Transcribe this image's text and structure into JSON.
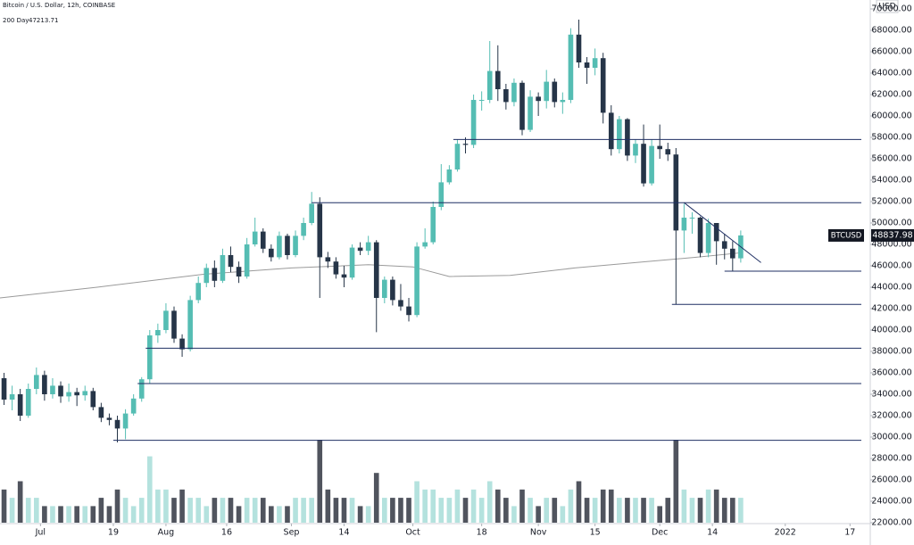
{
  "chart_data": {
    "type": "candlestick",
    "title": "Bitcoin / U.S. Dollar, 12h, COINBASE",
    "currency": "USD",
    "symbol": "BTCUSD",
    "up_color": "#55bdb3",
    "down_color": "#263548",
    "volume_up_color": "#b4e2de",
    "volume_down_color": "#50545e",
    "level_color": "#1f2f63",
    "ma": {
      "name": "200 Day",
      "color": "#9a9a9a",
      "x": [
        "2021-06-21",
        "2021-07-15",
        "2021-08-10",
        "2021-09-01",
        "2021-09-20",
        "2021-10-01",
        "2021-10-10",
        "2021-10-25",
        "2021-11-10",
        "2021-11-25",
        "2021-12-10",
        "2021-12-21"
      ],
      "values": [
        43000,
        44000,
        45200,
        45800,
        46100,
        45900,
        45000,
        45100,
        45800,
        46300,
        46800,
        47213.71
      ]
    },
    "candles": {
      "x": [
        "2021-06-21",
        "2021-06-23",
        "2021-06-25",
        "2021-06-27",
        "2021-06-29",
        "2021-07-01",
        "2021-07-03",
        "2021-07-05",
        "2021-07-07",
        "2021-07-09",
        "2021-07-11",
        "2021-07-13",
        "2021-07-15",
        "2021-07-17",
        "2021-07-19",
        "2021-07-21",
        "2021-07-23",
        "2021-07-25",
        "2021-07-27",
        "2021-07-29",
        "2021-07-31",
        "2021-08-02",
        "2021-08-04",
        "2021-08-06",
        "2021-08-08",
        "2021-08-10",
        "2021-08-12",
        "2021-08-14",
        "2021-08-16",
        "2021-08-18",
        "2021-08-20",
        "2021-08-22",
        "2021-08-24",
        "2021-08-26",
        "2021-08-28",
        "2021-08-30",
        "2021-09-01",
        "2021-09-03",
        "2021-09-05",
        "2021-09-07",
        "2021-09-09",
        "2021-09-11",
        "2021-09-13",
        "2021-09-15",
        "2021-09-17",
        "2021-09-19",
        "2021-09-21",
        "2021-09-23",
        "2021-09-25",
        "2021-09-27",
        "2021-09-29",
        "2021-10-01",
        "2021-10-03",
        "2021-10-05",
        "2021-10-07",
        "2021-10-09",
        "2021-10-11",
        "2021-10-13",
        "2021-10-15",
        "2021-10-17",
        "2021-10-19",
        "2021-10-21",
        "2021-10-23",
        "2021-10-25",
        "2021-10-27",
        "2021-10-29",
        "2021-10-31",
        "2021-11-02",
        "2021-11-04",
        "2021-11-06",
        "2021-11-08",
        "2021-11-10",
        "2021-11-12",
        "2021-11-14",
        "2021-11-16",
        "2021-11-18",
        "2021-11-20",
        "2021-11-22",
        "2021-11-24",
        "2021-11-26",
        "2021-11-28",
        "2021-11-30",
        "2021-12-02",
        "2021-12-04",
        "2021-12-06",
        "2021-12-08",
        "2021-12-10",
        "2021-12-12",
        "2021-12-14",
        "2021-12-16",
        "2021-12-18",
        "2021-12-20"
      ],
      "open": [
        35500,
        33500,
        34000,
        32000,
        34500,
        35800,
        34000,
        34800,
        33800,
        34200,
        33900,
        34300,
        32800,
        31800,
        31600,
        30800,
        32200,
        33600,
        35400,
        39500,
        40000,
        41800,
        39200,
        38200,
        42800,
        44400,
        45800,
        44600,
        47000,
        45900,
        45000,
        48000,
        49200,
        47600,
        46800,
        48800,
        47000,
        48800,
        50000,
        51800,
        46800,
        46400,
        45200,
        44900,
        47700,
        47400,
        48200,
        43000,
        44700,
        42800,
        42200,
        41400,
        47800,
        48200,
        51500,
        53800,
        55000,
        57400,
        57300,
        61500,
        61500,
        64200,
        62500,
        61300,
        63100,
        58700,
        61800,
        61400,
        63200,
        61300,
        61500,
        67600,
        65000,
        64500,
        65400,
        60300,
        56900,
        59700,
        56300,
        57400,
        53700,
        57200,
        56900,
        56400,
        49300,
        50500,
        50500,
        47200,
        50000,
        48300,
        47600,
        46700
      ],
      "high": [
        36000,
        34800,
        34500,
        35000,
        36500,
        36200,
        35500,
        35200,
        35000,
        34600,
        34800,
        34600,
        33200,
        32200,
        32000,
        32600,
        34000,
        35600,
        40000,
        40600,
        42500,
        42200,
        39600,
        43200,
        45000,
        46200,
        46500,
        47600,
        47800,
        46400,
        48600,
        50500,
        49500,
        48000,
        49200,
        49000,
        49300,
        50500,
        52900,
        52400,
        47300,
        46800,
        46000,
        48000,
        48200,
        48800,
        48400,
        45000,
        45000,
        44300,
        43000,
        48200,
        49500,
        52000,
        55500,
        55400,
        57800,
        58000,
        62000,
        62300,
        67000,
        66600,
        63000,
        63500,
        63300,
        62400,
        62200,
        64300,
        63500,
        62200,
        68200,
        69000,
        65500,
        66300,
        65900,
        61000,
        60000,
        59800,
        57800,
        59200,
        57800,
        59200,
        57500,
        57000,
        51800,
        51000,
        50600,
        50400,
        50000,
        49000,
        48300,
        49300
      ],
      "low": [
        33000,
        32500,
        31500,
        31800,
        34000,
        33400,
        33600,
        33200,
        33300,
        32900,
        33400,
        32500,
        31400,
        31100,
        29500,
        29800,
        32000,
        33300,
        35000,
        38800,
        39700,
        38800,
        37500,
        38000,
        42500,
        44000,
        44000,
        44400,
        45400,
        44400,
        44800,
        47800,
        47200,
        46400,
        46600,
        46600,
        46800,
        48400,
        49800,
        43000,
        45800,
        44800,
        44000,
        44700,
        47000,
        47000,
        39800,
        42500,
        42300,
        41800,
        40800,
        41200,
        47600,
        48000,
        51200,
        53600,
        54800,
        56500,
        57000,
        60500,
        61200,
        61400,
        60600,
        60900,
        58200,
        58500,
        60000,
        60700,
        60800,
        60200,
        61200,
        64500,
        63000,
        63800,
        59300,
        56300,
        56500,
        55800,
        55600,
        53400,
        53500,
        56000,
        55800,
        42400,
        47200,
        49000,
        46800,
        46800,
        46100,
        46600,
        45500,
        46300
      ],
      "close": [
        33500,
        34000,
        32000,
        34500,
        35800,
        34000,
        34800,
        33800,
        34200,
        33900,
        34300,
        32800,
        31800,
        31600,
        30800,
        32200,
        33600,
        35400,
        39500,
        40000,
        41800,
        39200,
        38200,
        42800,
        44400,
        45800,
        44600,
        47000,
        45900,
        45000,
        48000,
        49200,
        47600,
        46800,
        48800,
        47000,
        48800,
        50000,
        51800,
        46800,
        46400,
        45200,
        44900,
        47700,
        47400,
        48200,
        43000,
        44700,
        42800,
        42200,
        41400,
        47800,
        48200,
        51500,
        53800,
        55000,
        57400,
        57300,
        61500,
        61500,
        64200,
        62500,
        61300,
        63100,
        58700,
        61800,
        61400,
        63200,
        61300,
        61500,
        67600,
        65000,
        64500,
        65400,
        60300,
        56900,
        59700,
        56300,
        57400,
        53700,
        57200,
        56900,
        56400,
        49300,
        50500,
        50500,
        47200,
        50000,
        48300,
        47600,
        46700,
        48837.98
      ],
      "volume": [
        4,
        3,
        5,
        3,
        3,
        2,
        2,
        2,
        2,
        2,
        2,
        2,
        3,
        2,
        4,
        3,
        2,
        3,
        8,
        4,
        4,
        3,
        4,
        3,
        3,
        2,
        3,
        3,
        3,
        2,
        3,
        3,
        3,
        2,
        2,
        2,
        3,
        3,
        3,
        10,
        4,
        3,
        3,
        3,
        2,
        2,
        6,
        3,
        3,
        3,
        3,
        5,
        4,
        4,
        3,
        3,
        4,
        3,
        4,
        3,
        5,
        4,
        3,
        2,
        4,
        3,
        2,
        3,
        3,
        2,
        4,
        5,
        3,
        3,
        4,
        4,
        3,
        3,
        3,
        3,
        3,
        2,
        3,
        10,
        4,
        3,
        3,
        4,
        4,
        3,
        3,
        3
      ]
    },
    "levels": [
      {
        "start": "2021-07-19",
        "value": 29700
      },
      {
        "start": "2021-07-25",
        "value": 35000
      },
      {
        "start": "2021-07-27",
        "value": 38300
      },
      {
        "start": "2021-09-06",
        "value": 51900
      },
      {
        "start": "2021-10-11",
        "value": 57800
      },
      {
        "start": "2021-12-04",
        "value": 42400
      },
      {
        "start": "2021-12-17",
        "value": 45500
      }
    ],
    "trendline": {
      "x": [
        "2021-12-07",
        "2021-12-26"
      ],
      "values": [
        51900,
        46300
      ]
    },
    "xlim": [
      "2021-06-21",
      "2022-01-22"
    ],
    "xticks": [
      {
        "value": "2021-07-01",
        "label": "Jul"
      },
      {
        "value": "2021-07-19",
        "label": "19"
      },
      {
        "value": "2021-08-01",
        "label": "Aug"
      },
      {
        "value": "2021-08-16",
        "label": "16"
      },
      {
        "value": "2021-09-01",
        "label": "Sep"
      },
      {
        "value": "2021-09-14",
        "label": "14"
      },
      {
        "value": "2021-10-01",
        "label": "Oct"
      },
      {
        "value": "2021-10-18",
        "label": "18"
      },
      {
        "value": "2021-11-01",
        "label": "Nov"
      },
      {
        "value": "2021-11-15",
        "label": "15"
      },
      {
        "value": "2021-12-01",
        "label": "Dec"
      },
      {
        "value": "2021-12-14",
        "label": "14"
      },
      {
        "value": "2022-01-01",
        "label": "2022"
      },
      {
        "value": "2022-01-17",
        "label": "17"
      }
    ],
    "ylim": [
      22000,
      70000
    ],
    "yticks": [
      {
        "value": 22000,
        "label": "22000.00"
      },
      {
        "value": 24000,
        "label": "24000.00"
      },
      {
        "value": 26000,
        "label": "26000.00"
      },
      {
        "value": 28000,
        "label": "28000.00"
      },
      {
        "value": 30000,
        "label": "30000.00"
      },
      {
        "value": 32000,
        "label": "32000.00"
      },
      {
        "value": 34000,
        "label": "34000.00"
      },
      {
        "value": 36000,
        "label": "36000.00"
      },
      {
        "value": 38000,
        "label": "38000.00"
      },
      {
        "value": 40000,
        "label": "40000.00"
      },
      {
        "value": 42000,
        "label": "42000.00"
      },
      {
        "value": 44000,
        "label": "44000.00"
      },
      {
        "value": 46000,
        "label": "46000.00"
      },
      {
        "value": 48000,
        "label": "48000.00"
      },
      {
        "value": 50000,
        "label": "50000.00"
      },
      {
        "value": 52000,
        "label": "52000.00"
      },
      {
        "value": 54000,
        "label": "54000.00"
      },
      {
        "value": 56000,
        "label": "56000.00"
      },
      {
        "value": 58000,
        "label": "58000.00"
      },
      {
        "value": 60000,
        "label": "60000.00"
      },
      {
        "value": 62000,
        "label": "62000.00"
      },
      {
        "value": 64000,
        "label": "64000.00"
      },
      {
        "value": 66000,
        "label": "66000.00"
      },
      {
        "value": 68000,
        "label": "68000.00"
      },
      {
        "value": 70000,
        "label": "70000.00"
      }
    ]
  }
}
